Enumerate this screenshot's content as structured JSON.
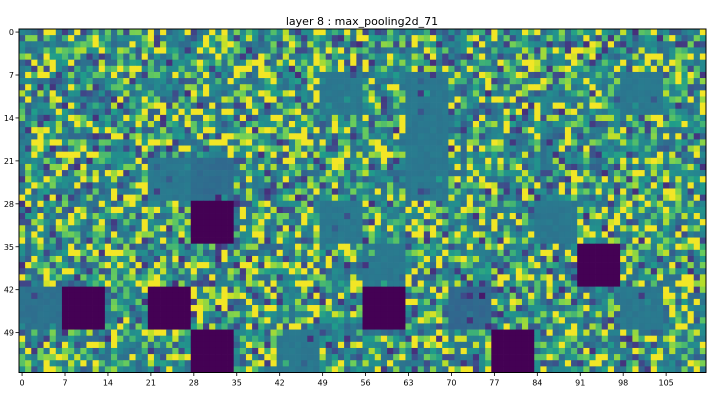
{
  "chart_data": {
    "type": "heatmap",
    "title": "layer 8 : max_pooling2d_71",
    "xlabel": "",
    "ylabel": "",
    "colormap": "viridis",
    "grid": false,
    "shape": {
      "rows": 56,
      "cols": 112
    },
    "tile": {
      "size": 7,
      "tiles_per_row": 16,
      "tile_rows": 8
    },
    "xticks": [
      0,
      7,
      14,
      21,
      28,
      35,
      42,
      49,
      56,
      63,
      70,
      77,
      84,
      91,
      98,
      105
    ],
    "yticks": [
      0,
      7,
      14,
      21,
      28,
      35,
      42,
      49
    ],
    "xlim": [
      0,
      112
    ],
    "ylim": [
      56,
      0
    ],
    "value_range": [
      0,
      1
    ],
    "dead_tiles": [
      {
        "tile_col": 4,
        "tile_row": 4
      },
      {
        "tile_col": 13,
        "tile_row": 5
      },
      {
        "tile_col": 1,
        "tile_row": 6
      },
      {
        "tile_col": 3,
        "tile_row": 6
      },
      {
        "tile_col": 8,
        "tile_row": 6
      },
      {
        "tile_col": 4,
        "tile_row": 7
      },
      {
        "tile_col": 11,
        "tile_row": 7
      }
    ],
    "flat_tiles": [
      {
        "tile_col": 7,
        "tile_row": 1,
        "value": 0.45
      },
      {
        "tile_col": 9,
        "tile_row": 1,
        "value": 0.45
      },
      {
        "tile_col": 14,
        "tile_row": 1,
        "value": 0.45
      },
      {
        "tile_col": 9,
        "tile_row": 2,
        "value": 0.45
      },
      {
        "tile_col": 3,
        "tile_row": 3,
        "value": 0.45
      },
      {
        "tile_col": 9,
        "tile_row": 3,
        "value": 0.45
      },
      {
        "tile_col": 4,
        "tile_row": 3,
        "value": 0.4
      },
      {
        "tile_col": 7,
        "tile_row": 4,
        "value": 0.45
      },
      {
        "tile_col": 12,
        "tile_row": 4,
        "value": 0.45
      },
      {
        "tile_col": 8,
        "tile_row": 5,
        "value": 0.45
      },
      {
        "tile_col": 14,
        "tile_row": 6,
        "value": 0.45
      },
      {
        "tile_col": 6,
        "tile_row": 7,
        "value": 0.45
      },
      {
        "tile_col": 0,
        "tile_row": 6,
        "value": 0.42
      },
      {
        "tile_col": 10,
        "tile_row": 6,
        "value": 0.38
      }
    ]
  }
}
